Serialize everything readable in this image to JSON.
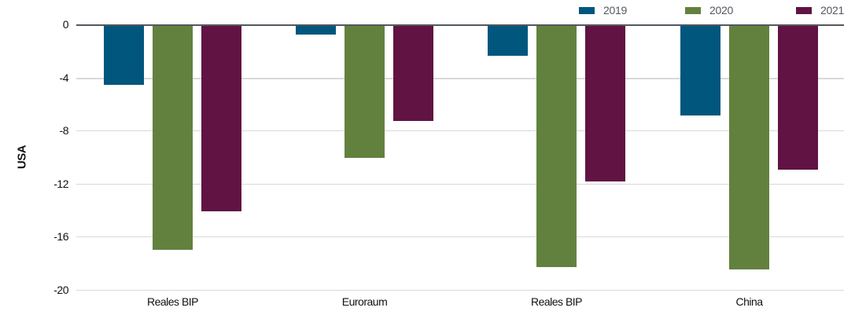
{
  "chart_data": {
    "type": "bar",
    "title": "",
    "xlabel": "",
    "ylabel": "USA",
    "ylim": [
      -20,
      0
    ],
    "yticks": [
      0,
      -4,
      -8,
      -12,
      -16,
      -20
    ],
    "ytick_labels": [
      "0",
      "-4",
      "-8",
      "-12",
      "-16",
      "-20"
    ],
    "grid": true,
    "legend_position": "top-right",
    "categories": [
      "Reales BIP",
      "Euroraum",
      "Reales BIP",
      "China"
    ],
    "series": [
      {
        "name": "2019",
        "color": "#00567d",
        "values": [
          -4.5,
          -0.7,
          -2.3,
          -6.8
        ]
      },
      {
        "name": "2020",
        "color": "#63813e",
        "values": [
          -16.9,
          -10.0,
          -18.2,
          -18.4
        ]
      },
      {
        "name": "2021",
        "color": "#611343",
        "values": [
          -14.0,
          -7.2,
          -11.8,
          -10.9
        ]
      }
    ]
  },
  "legend": {
    "items": [
      {
        "label": "2019",
        "color": "#00567d"
      },
      {
        "label": "2020",
        "color": "#63813e"
      },
      {
        "label": "2021",
        "color": "#611343"
      }
    ]
  },
  "axis": {
    "ylabel": "USA",
    "ticks": [
      "0",
      "-4",
      "-8",
      "-12",
      "-16",
      "-20"
    ]
  },
  "xaxis": {
    "labels": [
      "Reales BIP",
      "Euroraum",
      "Reales BIP",
      "China"
    ]
  }
}
